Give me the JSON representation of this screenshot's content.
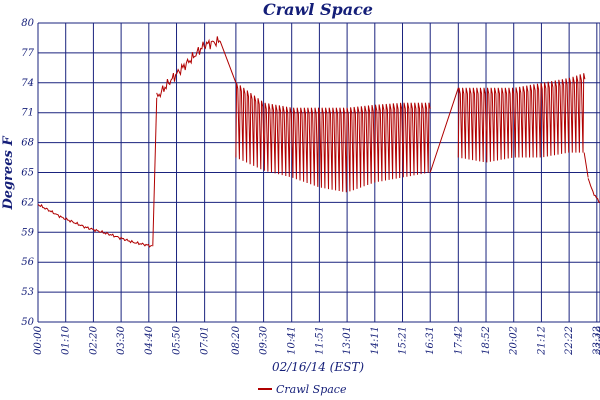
{
  "chart_data": {
    "type": "line",
    "title": "Crawl Space",
    "xlabel": "02/16/14 (EST)",
    "ylabel": "Degrees F",
    "ylim": [
      50,
      80
    ],
    "xlim": [
      "00:00",
      "23:40"
    ],
    "y_ticks": [
      "50",
      "53",
      "56",
      "59",
      "62",
      "65",
      "68",
      "71",
      "74",
      "77",
      "80"
    ],
    "x_ticks": [
      "00:00",
      "01:10",
      "02:20",
      "03:30",
      "04:40",
      "05:50",
      "07:01",
      "08:20",
      "09:30",
      "10:41",
      "11:51",
      "13:01",
      "14:11",
      "15:21",
      "16:31",
      "17:42",
      "18:52",
      "20:02",
      "21:12",
      "22:22",
      "23:32",
      "23:40"
    ],
    "grid": true,
    "legend_position": "bottom",
    "series": [
      {
        "name": "Crawl Space",
        "color": "#b00000",
        "segments": [
          {
            "x": [
              "00:00",
              "01:00",
              "02:00",
              "03:00",
              "04:00",
              "04:50"
            ],
            "y": [
              61.8,
              60.5,
              59.5,
              58.8,
              58.0,
              57.6
            ]
          },
          {
            "x": [
              "05:00",
              "05:30",
              "06:00",
              "06:30",
              "07:00",
              "07:40"
            ],
            "y": [
              72.5,
              74.0,
              75.3,
              76.5,
              77.8,
              78.2
            ]
          },
          {
            "x": [
              "08:20",
              "09:30",
              "10:41",
              "11:51",
              "13:01",
              "14:11",
              "15:21",
              "16:31"
            ],
            "y_max": [
              74.0,
              72.0,
              71.5,
              71.5,
              71.5,
              71.8,
              72.0,
              72.0
            ],
            "y_min": [
              66.5,
              65.2,
              64.5,
              63.5,
              63.0,
              64.0,
              64.5,
              65.0
            ]
          },
          {
            "x": [
              "17:42",
              "18:52",
              "20:02",
              "21:12",
              "22:22",
              "23:00"
            ],
            "y_max": [
              73.5,
              73.5,
              73.5,
              74.0,
              74.5,
              75.0
            ],
            "y_min": [
              66.5,
              66.0,
              66.5,
              66.5,
              67.0,
              67.0
            ]
          },
          {
            "x": [
              "23:10",
              "23:20",
              "23:30",
              "23:40"
            ],
            "y": [
              64.5,
              63.2,
              62.5,
              62.0
            ]
          }
        ]
      }
    ]
  },
  "colors": {
    "text": "#141e78",
    "grid": "#1a237e",
    "line": "#b00000"
  }
}
